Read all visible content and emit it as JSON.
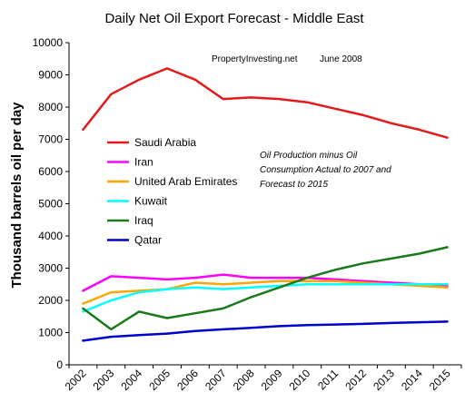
{
  "chart_data": {
    "type": "line",
    "title": "Daily Net Oil Export Forecast  -  Middle East",
    "ylabel": "Thousand barrels oil per day",
    "xlabel": "",
    "source": "PropertyInvesting.net",
    "date": "June 2008",
    "note_lines": [
      "Oil Production minus Oil",
      "Consumption Actual to 2007 and",
      "Forecast to 2015"
    ],
    "ylim": [
      0,
      10000
    ],
    "yticks": [
      0,
      1000,
      2000,
      3000,
      4000,
      5000,
      6000,
      7000,
      8000,
      9000,
      10000
    ],
    "xlim": [
      2002,
      2016
    ],
    "x": [
      2002,
      2003,
      2004,
      2005,
      2006,
      2007,
      2008,
      2009,
      2010,
      2011,
      2012,
      2013,
      2014,
      2015
    ],
    "grid": false,
    "legend_position": "left, inside plot",
    "series": [
      {
        "name": "Saudi Arabia",
        "color": "#e31a1c",
        "values": [
          7300,
          8400,
          8850,
          9200,
          8850,
          8250,
          8300,
          8250,
          8150,
          7950,
          7750,
          7500,
          7300,
          7050
        ]
      },
      {
        "name": "Iran",
        "color": "#ff00ff",
        "values": [
          2300,
          2750,
          2700,
          2650,
          2700,
          2800,
          2700,
          2700,
          2700,
          2650,
          2600,
          2550,
          2500,
          2450
        ]
      },
      {
        "name": "United Arab Emirates",
        "color": "#ffa500",
        "values": [
          1900,
          2250,
          2300,
          2350,
          2550,
          2500,
          2550,
          2600,
          2600,
          2600,
          2550,
          2500,
          2450,
          2400
        ]
      },
      {
        "name": "Kuwait",
        "color": "#00ffff",
        "values": [
          1650,
          2000,
          2250,
          2350,
          2400,
          2350,
          2400,
          2450,
          2500,
          2500,
          2500,
          2500,
          2500,
          2500
        ]
      },
      {
        "name": "Iraq",
        "color": "#1a7a1a",
        "values": [
          1750,
          1100,
          1650,
          1450,
          1600,
          1750,
          2100,
          2400,
          2700,
          2950,
          3150,
          3300,
          3450,
          3650
        ]
      },
      {
        "name": "Qatar",
        "color": "#0000cc",
        "values": [
          750,
          870,
          920,
          970,
          1050,
          1100,
          1150,
          1200,
          1230,
          1250,
          1270,
          1300,
          1320,
          1340
        ]
      }
    ]
  }
}
